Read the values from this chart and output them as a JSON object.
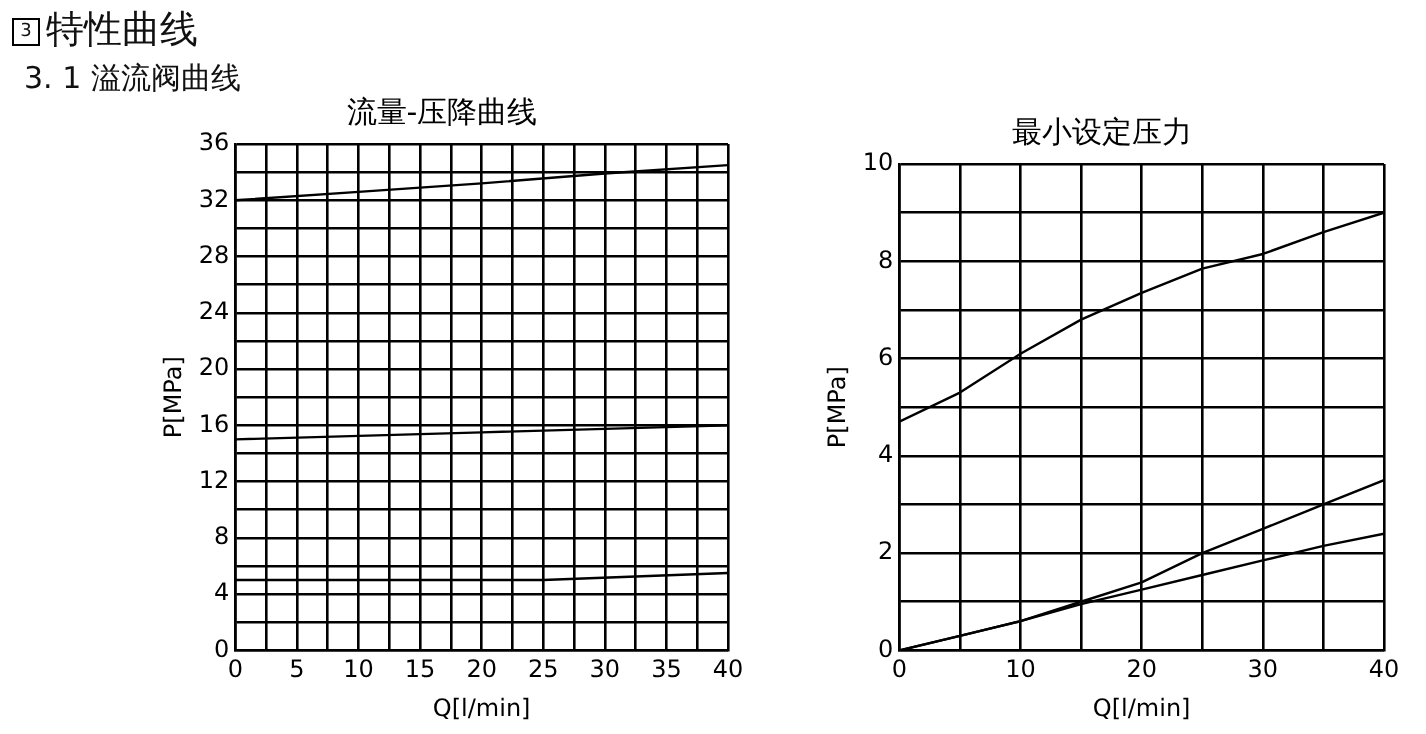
{
  "chart_data": [
    {
      "type": "line",
      "title": "流量-压降曲线",
      "xlabel": "Q[l/min]",
      "ylabel": "P[MPa]",
      "annotations": [
        "3",
        "特性曲线",
        "3. 1 溢流阀曲线"
      ],
      "xlim": [
        0,
        40
      ],
      "ylim": [
        0,
        36
      ],
      "xticks": [
        0,
        {
          "value": 2.5,
          "label": null
        },
        5,
        {
          "value": 7.5,
          "label": null
        },
        10,
        {
          "value": 12.5,
          "label": null
        },
        15,
        {
          "value": 17.5,
          "label": null
        },
        20,
        {
          "value": 22.5,
          "label": null
        },
        25,
        {
          "value": 27.5,
          "label": null
        },
        30,
        {
          "value": 32.5,
          "label": null
        },
        35,
        {
          "value": 37.5,
          "label": null
        },
        40
      ],
      "yticks": [
        0,
        {
          "value": 2,
          "label": null
        },
        4,
        {
          "value": 6,
          "label": null
        },
        8,
        {
          "value": 10,
          "label": null
        },
        12,
        {
          "value": 14,
          "label": null
        },
        16,
        {
          "value": 18,
          "label": null
        },
        20,
        {
          "value": 22,
          "label": null
        },
        24,
        {
          "value": 26,
          "label": null
        },
        28,
        {
          "value": 30,
          "label": null
        },
        32,
        {
          "value": 34,
          "label": null
        },
        36
      ],
      "grid": true,
      "legend": false,
      "marker": "none",
      "line_style": "solid",
      "series": [
        {
          "color": "#000000",
          "x": [
            0,
            10,
            20,
            30,
            40
          ],
          "values": [
            32,
            32.6,
            33.2,
            33.9,
            34.5
          ]
        },
        {
          "color": "#000000",
          "x": [
            0,
            20,
            40
          ],
          "values": [
            15,
            15.5,
            16
          ]
        },
        {
          "color": "#000000",
          "x": [
            0,
            20,
            25,
            40
          ],
          "values": [
            5,
            5,
            5,
            5.5
          ]
        }
      ]
    },
    {
      "type": "line",
      "title": "最小设定压力",
      "xlabel": "Q[l/min]",
      "ylabel": "P[MPa]",
      "xlim": [
        0,
        40
      ],
      "ylim": [
        0,
        10
      ],
      "xticks": [
        0,
        {
          "value": 5,
          "label": null
        },
        10,
        {
          "value": 15,
          "label": null
        },
        20,
        {
          "value": 25,
          "label": null
        },
        30,
        {
          "value": 35,
          "label": null
        },
        40
      ],
      "yticks": [
        0,
        {
          "value": 1,
          "label": null
        },
        2,
        {
          "value": 3,
          "label": null
        },
        4,
        {
          "value": 5,
          "label": null
        },
        6,
        {
          "value": 7,
          "label": null
        },
        8,
        {
          "value": 9,
          "label": null
        },
        10
      ],
      "grid": true,
      "legend": false,
      "marker": "none",
      "line_style": "solid",
      "series": [
        {
          "color": "#000000",
          "x": [
            0,
            5,
            10,
            15,
            20,
            25,
            30,
            35,
            40
          ],
          "values": [
            4.7,
            5.3,
            6.1,
            6.8,
            7.35,
            7.85,
            8.15,
            8.6,
            9
          ]
        },
        {
          "color": "#000000",
          "x": [
            0,
            5,
            10,
            15,
            20,
            25,
            30,
            35,
            40
          ],
          "values": [
            0,
            0.3,
            0.6,
            1,
            1.4,
            2,
            2.5,
            3,
            3.5
          ]
        },
        {
          "color": "#000000",
          "x": [
            0,
            5,
            10,
            15,
            20,
            25,
            30,
            35,
            40
          ],
          "values": [
            0,
            0.3,
            0.6,
            0.95,
            1.25,
            1.55,
            1.85,
            2.15,
            2.4
          ]
        }
      ]
    }
  ]
}
